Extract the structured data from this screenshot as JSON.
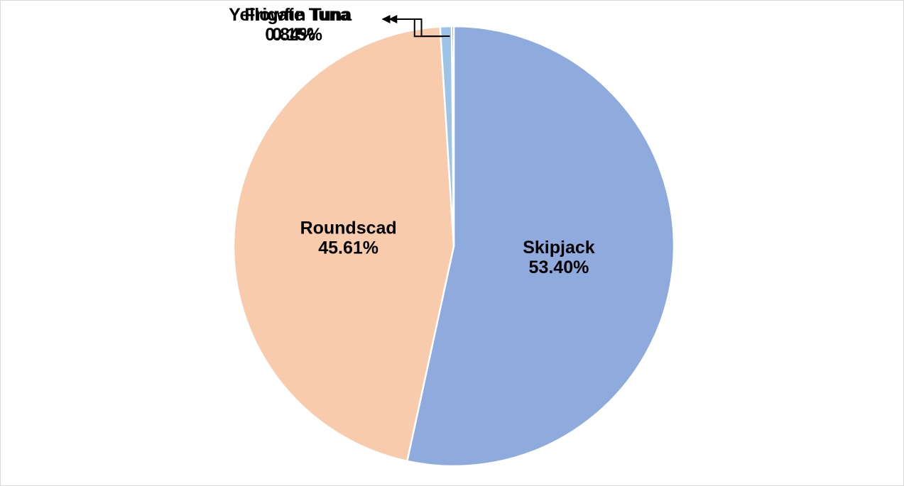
{
  "chart_data": {
    "type": "pie",
    "title": "",
    "slices": [
      {
        "label": "Skipjack",
        "value": 53.4,
        "value_text": "53.40%",
        "color": "#8faadc"
      },
      {
        "label": "Roundscad",
        "value": 45.61,
        "value_text": "45.61%",
        "color": "#f8cbad"
      },
      {
        "label": "Yellowfin Tuna",
        "value": 0.84,
        "value_text": "0.84%",
        "color": "#9dc3e6"
      },
      {
        "label": "Frigate Tuna",
        "value": 0.15,
        "value_text": "0.15%",
        "color": "#333f50"
      }
    ],
    "start_angle": "top (12 o'clock)",
    "direction": "clockwise",
    "legend": "none",
    "data_labels": "category name and percentage"
  }
}
